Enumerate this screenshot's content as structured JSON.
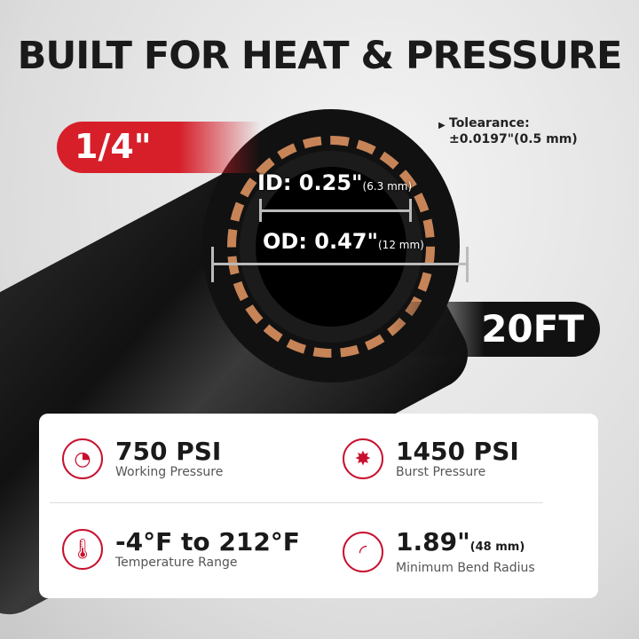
{
  "title": "BUILT FOR HEAT & PRESSURE",
  "size_tag": "1/4\"",
  "length_tag": "20FT",
  "tolerance": {
    "label": "Tolearance:",
    "value": "±0.0197\"(0.5 mm)"
  },
  "id": {
    "label": "ID: 0.25\"",
    "metric": "(6.3 mm)"
  },
  "od": {
    "label": "OD: 0.47\"",
    "metric": "(12 mm)"
  },
  "accent_color": "#c8102e",
  "specs": [
    {
      "icon": "pressure-gauge-icon",
      "value": "750 PSI",
      "metric": "",
      "label": "Working Pressure"
    },
    {
      "icon": "burst-icon",
      "value": "1450 PSI",
      "metric": "",
      "label": "Burst Pressure"
    },
    {
      "icon": "thermometer-icon",
      "value": "-4°F to 212°F",
      "metric": "",
      "label": "Temperature Range"
    },
    {
      "icon": "bend-radius-icon",
      "value": "1.89\"",
      "metric": "(48 mm)",
      "label": "Minimum Bend Radius"
    }
  ]
}
